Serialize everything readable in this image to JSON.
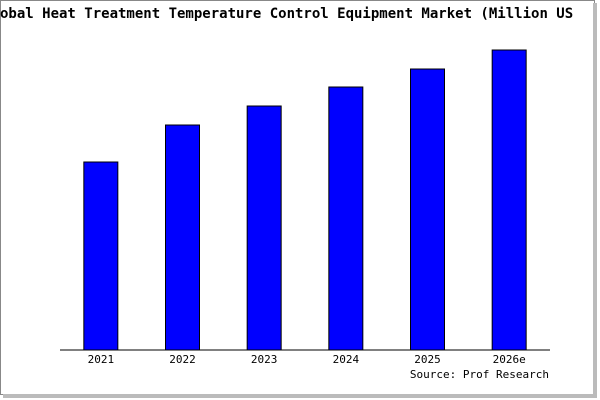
{
  "chart_data": {
    "type": "bar",
    "title": "obal Heat Treatment Temperature Control Equipment Market (Million US",
    "source": "Source: Prof Research",
    "categories": [
      "2021",
      "2022",
      "2023",
      "2024",
      "2025",
      "2026e"
    ],
    "values": [
      188,
      225,
      244,
      263,
      281,
      300
    ],
    "color": "#0000ff",
    "ylim": [
      0,
      300
    ]
  }
}
